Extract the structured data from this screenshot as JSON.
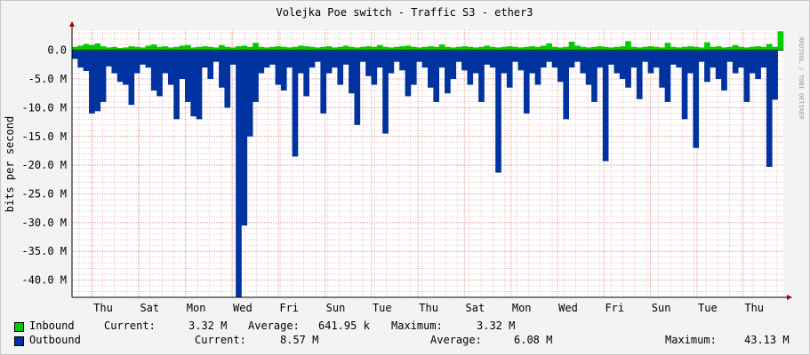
{
  "chart_data": {
    "type": "area",
    "title": "Volejka Poe switch - Traffic S3 - ether3",
    "ylabel": "bits per second",
    "watermark": "RRDTOOL / TOBI OETIKER",
    "ylim": [
      -43000000,
      3500000
    ],
    "y_ticks": [
      {
        "value": 0,
        "label": "0.0"
      },
      {
        "value": -5000000,
        "label": "-5.0 M"
      },
      {
        "value": -10000000,
        "label": "-10.0 M"
      },
      {
        "value": -15000000,
        "label": "-15.0 M"
      },
      {
        "value": -20000000,
        "label": "-20.0 M"
      },
      {
        "value": -25000000,
        "label": "-25.0 M"
      },
      {
        "value": -30000000,
        "label": "-30.0 M"
      },
      {
        "value": -35000000,
        "label": "-35.0 M"
      },
      {
        "value": -40000000,
        "label": "-40.0 M"
      }
    ],
    "x_ticks": [
      "Thu",
      "Sat",
      "Mon",
      "Wed",
      "Fri",
      "Sun",
      "Tue",
      "Thu",
      "Sat",
      "Mon",
      "Wed",
      "Fri",
      "Sun",
      "Tue",
      "Thu"
    ],
    "grid": true,
    "colors": {
      "inbound": "#00cc00",
      "outbound": "#0033a0",
      "grid": "#e0a0a0",
      "axis": "#000000",
      "arrow": "#a00000"
    },
    "series": [
      {
        "name": "Inbound",
        "values": [
          0.6,
          0.8,
          1.1,
          0.9,
          1.2,
          0.7,
          0.5,
          0.6,
          0.4,
          0.5,
          0.7,
          0.6,
          0.5,
          0.8,
          1.0,
          0.6,
          0.7,
          0.5,
          0.6,
          0.8,
          0.9,
          0.5,
          0.6,
          0.7,
          0.6,
          0.5,
          0.9,
          0.6,
          0.5,
          0.7,
          0.8,
          0.6,
          1.3,
          0.6,
          0.5,
          0.6,
          0.7,
          0.6,
          0.5,
          0.6,
          0.8,
          0.7,
          0.6,
          0.5,
          0.6,
          0.7,
          0.5,
          0.6,
          0.8,
          0.6,
          0.5,
          0.6,
          0.7,
          0.6,
          0.9,
          0.6,
          0.5,
          0.6,
          0.7,
          0.8,
          0.6,
          0.5,
          0.6,
          0.7,
          0.6,
          1.0,
          0.6,
          0.5,
          0.6,
          0.7,
          0.6,
          0.5,
          0.6,
          0.8,
          0.6,
          0.5,
          0.6,
          0.7,
          0.6,
          0.5,
          0.6,
          0.7,
          0.6,
          0.8,
          1.2,
          0.6,
          0.5,
          0.6,
          1.5,
          0.8,
          0.6,
          0.5,
          0.6,
          0.7,
          0.6,
          0.5,
          0.6,
          0.7,
          1.6,
          0.6,
          0.5,
          0.6,
          0.7,
          0.6,
          0.5,
          1.3,
          0.6,
          0.5,
          0.6,
          0.7,
          0.6,
          0.5,
          1.4,
          0.6,
          0.7,
          0.5,
          0.6,
          0.9,
          0.6,
          0.5,
          0.6,
          0.7,
          0.6,
          1.1,
          0.6,
          3.3
        ]
      },
      {
        "name": "Outbound",
        "values": [
          -1.5,
          -3.0,
          -3.6,
          -11.0,
          -10.6,
          -9.0,
          -2.8,
          -4.0,
          -5.5,
          -6.0,
          -9.5,
          -4.0,
          -2.5,
          -3.0,
          -7.0,
          -8.0,
          -4.0,
          -6.0,
          -12.0,
          -5.0,
          -9.0,
          -11.5,
          -12.0,
          -3.0,
          -5.0,
          -2.0,
          -6.5,
          -10.0,
          -2.5,
          -43.1,
          -30.5,
          -15.0,
          -9.0,
          -4.0,
          -3.0,
          -2.5,
          -6.0,
          -7.0,
          -3.0,
          -18.5,
          -4.0,
          -8.0,
          -3.0,
          -2.0,
          -11.0,
          -4.0,
          -3.0,
          -6.0,
          -2.5,
          -7.5,
          -13.0,
          -2.0,
          -4.5,
          -6.0,
          -3.0,
          -14.5,
          -4.0,
          -2.0,
          -3.5,
          -8.0,
          -6.0,
          -2.0,
          -3.0,
          -6.5,
          -9.0,
          -3.0,
          -7.5,
          -5.0,
          -2.0,
          -3.5,
          -6.0,
          -4.0,
          -9.0,
          -2.5,
          -3.0,
          -21.3,
          -4.0,
          -6.5,
          -2.0,
          -3.5,
          -11.0,
          -4.0,
          -6.0,
          -3.0,
          -2.0,
          -3.0,
          -5.5,
          -12.0,
          -3.0,
          -2.0,
          -4.0,
          -6.0,
          -9.0,
          -3.0,
          -19.3,
          -2.5,
          -4.0,
          -5.0,
          -6.5,
          -3.0,
          -8.5,
          -2.0,
          -4.0,
          -3.0,
          -6.5,
          -9.0,
          -2.5,
          -3.0,
          -12.0,
          -4.0,
          -17.0,
          -2.0,
          -5.5,
          -3.0,
          -5.0,
          -7.0,
          -2.0,
          -4.0,
          -3.0,
          -9.0,
          -4.0,
          -5.0,
          -3.0,
          -20.3,
          -8.6
        ]
      }
    ]
  },
  "legend": {
    "inbound": {
      "name": "Inbound",
      "current_label": "Current:",
      "current": "3.32 M",
      "average_label": "Average:",
      "average": "641.95 k",
      "maximum_label": "Maximum:",
      "maximum": "3.32 M"
    },
    "outbound": {
      "name": "Outbound",
      "current_label": "Current:",
      "current": "8.57 M",
      "average_label": "Average:",
      "average": "6.08 M",
      "maximum_label": "Maximum:",
      "maximum": "43.13 M"
    }
  }
}
